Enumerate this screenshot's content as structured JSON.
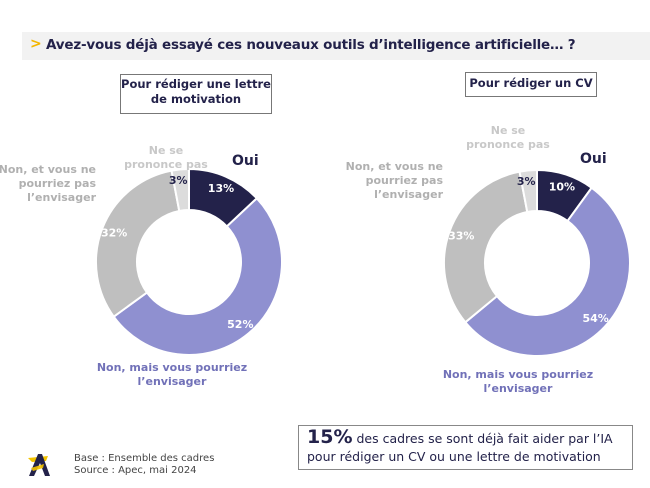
{
  "title": {
    "chevron": ">",
    "text": "Avez-vous déjà essayé ces nouveaux outils d’intelligence artificielle… ?"
  },
  "colors": {
    "oui": "#23224a",
    "non_mais": "#8f90d0",
    "non_pas": "#bfbfbf",
    "ne_se_prononce": "#dcdcdc",
    "accent": "#f3b600"
  },
  "chart_data": [
    {
      "type": "pie",
      "variant": "donut",
      "title": "Pour rédiger une lettre de motivation",
      "categories": [
        "Oui",
        "Non, mais vous pourriez l’envisager",
        "Non, et vous ne pourriez pas l’envisager",
        "Ne se prononce pas"
      ],
      "values": [
        13,
        52,
        32,
        3
      ],
      "data_labels": [
        "13%",
        "52%",
        "32%",
        "3%"
      ],
      "unit": "%"
    },
    {
      "type": "pie",
      "variant": "donut",
      "title": "Pour rédiger un CV",
      "categories": [
        "Oui",
        "Non, mais vous pourriez l’envisager",
        "Non, et vous ne pourriez pas l’envisager",
        "Ne se prononce pas"
      ],
      "values": [
        10,
        54,
        33,
        3
      ],
      "data_labels": [
        "10%",
        "54%",
        "33%",
        "3%"
      ],
      "unit": "%"
    }
  ],
  "labels": {
    "oui": "Oui",
    "ns_line1": "Ne se",
    "ns_line2": "prononce pas",
    "nonpas_line1": "Non, et vous ne",
    "nonpas_line2": "pourriez pas",
    "nonpas_line3": "l’envisager",
    "mais_line1": "Non, mais vous pourriez",
    "mais_line2": "l’envisager"
  },
  "boxes": {
    "left_line1": "Pour rédiger une lettre",
    "left_line2": "de motivation",
    "right": "Pour rédiger un CV"
  },
  "footer": {
    "base": "Base : Ensemble des cadres",
    "source": "Source : Apec, mai 2024"
  },
  "callout": {
    "big": "15%",
    "line1_rest": " des cadres se sont déjà fait aider par l’IA",
    "line2": "pour rédiger un CV ou une lettre de motivation"
  }
}
